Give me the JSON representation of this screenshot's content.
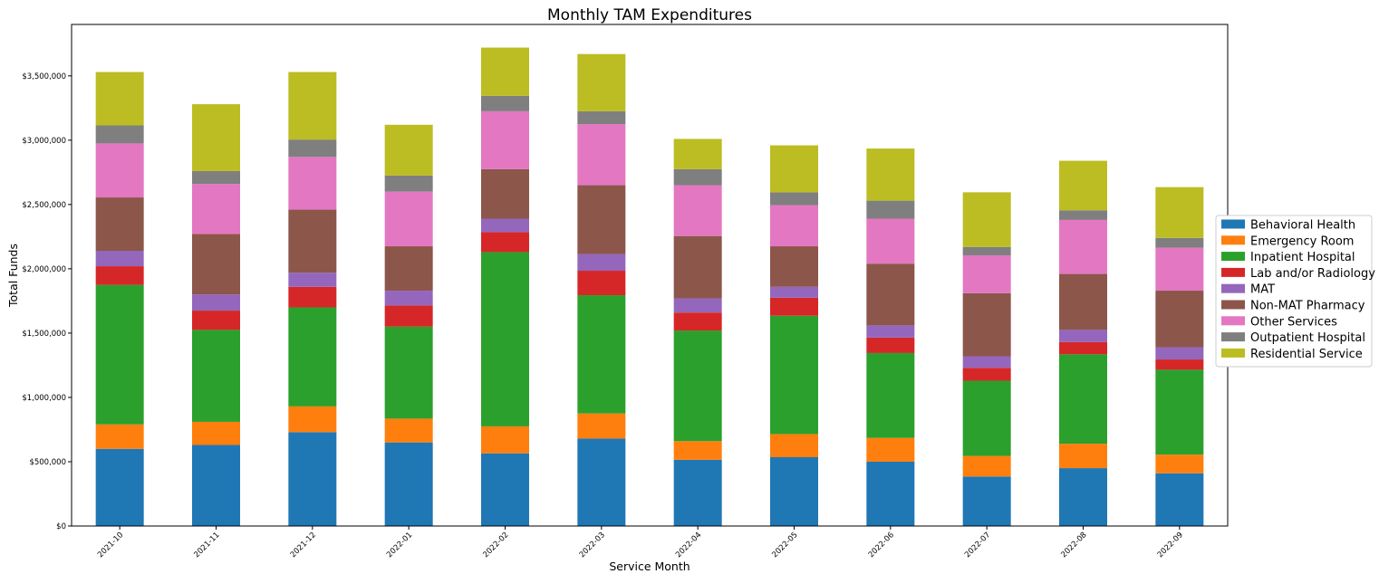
{
  "chart_data": {
    "type": "bar",
    "stacked": true,
    "title": "Monthly TAM Expenditures",
    "xlabel": "Service Month",
    "ylabel": "Total Funds",
    "ylim": [
      0,
      3900000
    ],
    "yticks": [
      0,
      500000,
      1000000,
      1500000,
      2000000,
      2500000,
      3000000,
      3500000
    ],
    "ytick_labels": [
      "$0",
      "$500,000",
      "$1,000,000",
      "$1,500,000",
      "$2,000,000",
      "$2,500,000",
      "$3,000,000",
      "$3,500,000"
    ],
    "grid": false,
    "legend_position": "right",
    "categories": [
      "2021-10",
      "2021-11",
      "2021-12",
      "2022-01",
      "2022-02",
      "2022-03",
      "2022-04",
      "2022-05",
      "2022-06",
      "2022-07",
      "2022-08",
      "2022-09"
    ],
    "series": [
      {
        "name": "Behavioral Health",
        "color": "#1f77b4",
        "values": [
          600000,
          630000,
          730000,
          650000,
          565000,
          680000,
          515000,
          535000,
          500000,
          385000,
          450000,
          410000
        ]
      },
      {
        "name": "Emergency Room",
        "color": "#ff7f0e",
        "values": [
          190000,
          180000,
          200000,
          185000,
          210000,
          195000,
          145000,
          180000,
          185000,
          160000,
          190000,
          145000
        ]
      },
      {
        "name": "Inpatient Hospital",
        "color": "#2ca02c",
        "values": [
          1085000,
          715000,
          770000,
          715000,
          1355000,
          920000,
          860000,
          920000,
          660000,
          585000,
          695000,
          660000
        ]
      },
      {
        "name": "Lab and/or Radiology",
        "color": "#d62728",
        "values": [
          145000,
          150000,
          160000,
          165000,
          155000,
          190000,
          140000,
          140000,
          120000,
          100000,
          95000,
          80000
        ]
      },
      {
        "name": "MAT",
        "color": "#9467bd",
        "values": [
          120000,
          125000,
          110000,
          115000,
          105000,
          130000,
          110000,
          85000,
          95000,
          90000,
          95000,
          95000
        ]
      },
      {
        "name": "Non-MAT Pharmacy",
        "color": "#8c564b",
        "values": [
          415000,
          470000,
          490000,
          345000,
          385000,
          535000,
          485000,
          315000,
          480000,
          490000,
          435000,
          440000
        ]
      },
      {
        "name": "Other Services",
        "color": "#e377c2",
        "values": [
          420000,
          390000,
          410000,
          425000,
          450000,
          475000,
          395000,
          320000,
          350000,
          295000,
          420000,
          335000
        ]
      },
      {
        "name": "Outpatient Hospital",
        "color": "#7f7f7f",
        "values": [
          140000,
          100000,
          135000,
          125000,
          120000,
          100000,
          125000,
          100000,
          140000,
          65000,
          75000,
          75000
        ]
      },
      {
        "name": "Residential Service",
        "color": "#bcbd22",
        "values": [
          415000,
          520000,
          525000,
          395000,
          375000,
          445000,
          235000,
          365000,
          405000,
          425000,
          385000,
          395000
        ]
      }
    ]
  }
}
